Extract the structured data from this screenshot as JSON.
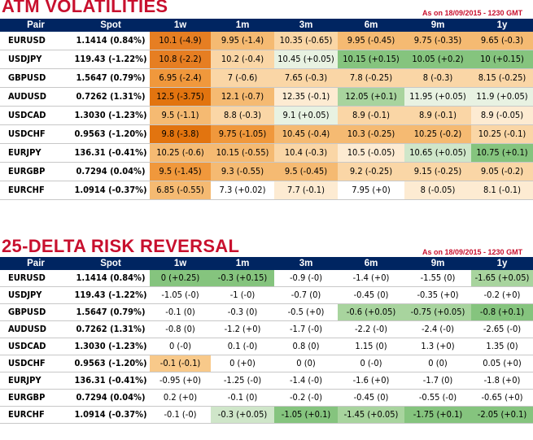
{
  "atm": {
    "title": "ATM VOLATILITIES",
    "as_of": "As on 18/09/2015 - 1230 GMT",
    "headers": [
      "Pair",
      "Spot",
      "1w",
      "1m",
      "3m",
      "6m",
      "9m",
      "1y"
    ],
    "rows": [
      {
        "pair": "EURUSD",
        "spot": "1.1414 (0.84%)",
        "cells": [
          {
            "text": "10.1 (-4.9)",
            "bg": "#e67e22"
          },
          {
            "text": "9.95 (-1.4)",
            "bg": "#f5ba72"
          },
          {
            "text": "10.35 (-0.65)",
            "bg": "#fad6a6"
          },
          {
            "text": "9.95 (-0.45)",
            "bg": "#f5ba72"
          },
          {
            "text": "9.75 (-0.35)",
            "bg": "#f5ba72"
          },
          {
            "text": "9.65 (-0.3)",
            "bg": "#f5ba72"
          }
        ]
      },
      {
        "pair": "USDJPY",
        "spot": "119.43 (-1.22%)",
        "cells": [
          {
            "text": "10.8 (-2.2)",
            "bg": "#e67e22"
          },
          {
            "text": "10.2 (-0.4)",
            "bg": "#fad6a6"
          },
          {
            "text": "10.45 (+0.05)",
            "bg": "#e8f2e2"
          },
          {
            "text": "10.15 (+0.15)",
            "bg": "#85c47e"
          },
          {
            "text": "10.05 (+0.2)",
            "bg": "#85c47e"
          },
          {
            "text": "10 (+0.15)",
            "bg": "#85c47e"
          }
        ]
      },
      {
        "pair": "GBPUSD",
        "spot": "1.5647 (0.79%)",
        "cells": [
          {
            "text": "6.95 (-2.4)",
            "bg": "#f0983c"
          },
          {
            "text": "7 (-0.6)",
            "bg": "#fad6a6"
          },
          {
            "text": "7.65 (-0.3)",
            "bg": "#fad6a6"
          },
          {
            "text": "7.8 (-0.25)",
            "bg": "#fad6a6"
          },
          {
            "text": "8 (-0.3)",
            "bg": "#fad6a6"
          },
          {
            "text": "8.15 (-0.25)",
            "bg": "#fad6a6"
          }
        ]
      },
      {
        "pair": "AUDUSD",
        "spot": "0.7262 (1.31%)",
        "cells": [
          {
            "text": "12.5 (-3.75)",
            "bg": "#e2740f"
          },
          {
            "text": "12.1 (-0.7)",
            "bg": "#f5ba72"
          },
          {
            "text": "12.35 (-0.1)",
            "bg": "#fdebd2"
          },
          {
            "text": "12.05 (+0.1)",
            "bg": "#a8d49e"
          },
          {
            "text": "11.95 (+0.05)",
            "bg": "#e8f2e2"
          },
          {
            "text": "11.9 (+0.05)",
            "bg": "#e8f2e2"
          }
        ]
      },
      {
        "pair": "USDCAD",
        "spot": "1.3030 (-1.23%)",
        "cells": [
          {
            "text": "9.5 (-1.1)",
            "bg": "#f5ba72"
          },
          {
            "text": "8.8 (-0.3)",
            "bg": "#fad6a6"
          },
          {
            "text": "9.1 (+0.05)",
            "bg": "#e8f2e2"
          },
          {
            "text": "8.9 (-0.1)",
            "bg": "#fad6a6"
          },
          {
            "text": "8.9 (-0.1)",
            "bg": "#fad6a6"
          },
          {
            "text": "8.9 (-0.05)",
            "bg": "#fdebd2"
          }
        ]
      },
      {
        "pair": "USDCHF",
        "spot": "0.9563 (-1.20%)",
        "cells": [
          {
            "text": "9.8 (-3.8)",
            "bg": "#e2740f"
          },
          {
            "text": "9.75 (-1.05)",
            "bg": "#f0983c"
          },
          {
            "text": "10.45 (-0.4)",
            "bg": "#f5ba72"
          },
          {
            "text": "10.3 (-0.25)",
            "bg": "#f5ba72"
          },
          {
            "text": "10.25 (-0.2)",
            "bg": "#f5ba72"
          },
          {
            "text": "10.25 (-0.1)",
            "bg": "#fad6a6"
          }
        ]
      },
      {
        "pair": "EURJPY",
        "spot": "136.31 (-0.41%)",
        "cells": [
          {
            "text": "10.25 (-0.6)",
            "bg": "#f5ba72"
          },
          {
            "text": "10.15 (-0.55)",
            "bg": "#f5ba72"
          },
          {
            "text": "10.4 (-0.3)",
            "bg": "#fad6a6"
          },
          {
            "text": "10.5 (-0.05)",
            "bg": "#fdebd2"
          },
          {
            "text": "10.65 (+0.05)",
            "bg": "#cfe6c9"
          },
          {
            "text": "10.75 (+0.1)",
            "bg": "#85c47e"
          }
        ]
      },
      {
        "pair": "EURGBP",
        "spot": "0.7294 (0.04%)",
        "cells": [
          {
            "text": "9.5 (-1.45)",
            "bg": "#f0983c"
          },
          {
            "text": "9.3 (-0.55)",
            "bg": "#f5ba72"
          },
          {
            "text": "9.5 (-0.45)",
            "bg": "#f5ba72"
          },
          {
            "text": "9.2 (-0.25)",
            "bg": "#fad6a6"
          },
          {
            "text": "9.15 (-0.25)",
            "bg": "#fad6a6"
          },
          {
            "text": "9.05 (-0.2)",
            "bg": "#fad6a6"
          }
        ]
      },
      {
        "pair": "EURCHF",
        "spot": "1.0914 (-0.37%)",
        "cells": [
          {
            "text": "6.85 (-0.55)",
            "bg": "#f5ba72"
          },
          {
            "text": "7.3 (+0.02)",
            "bg": "#ffffff"
          },
          {
            "text": "7.7 (-0.1)",
            "bg": "#fdebd2"
          },
          {
            "text": "7.95 (+0)",
            "bg": "#ffffff"
          },
          {
            "text": "8 (-0.05)",
            "bg": "#fdebd2"
          },
          {
            "text": "8.1 (-0.1)",
            "bg": "#fdebd2"
          }
        ]
      }
    ]
  },
  "rr": {
    "title": "25-DELTA RISK REVERSAL",
    "as_of": "As on 18/09/2015 - 1230 GMT",
    "headers": [
      "Pair",
      "Spot",
      "1w",
      "1m",
      "3m",
      "6m",
      "9m",
      "1y"
    ],
    "rows": [
      {
        "pair": "EURUSD",
        "spot": "1.1414 (0.84%)",
        "cells": [
          {
            "text": "0 (+0.25)",
            "bg": "#85c47e"
          },
          {
            "text": "-0.3 (+0.15)",
            "bg": "#85c47e"
          },
          {
            "text": "-0.9 (-0)",
            "bg": "#ffffff"
          },
          {
            "text": "-1.4 (+0)",
            "bg": "#ffffff"
          },
          {
            "text": "-1.55 (0)",
            "bg": "#ffffff"
          },
          {
            "text": "-1.65 (+0.05)",
            "bg": "#a8d49e"
          }
        ]
      },
      {
        "pair": "USDJPY",
        "spot": "119.43 (-1.22%)",
        "cells": [
          {
            "text": "-1.05 (-0)",
            "bg": "#ffffff"
          },
          {
            "text": "-1 (-0)",
            "bg": "#ffffff"
          },
          {
            "text": "-0.7 (0)",
            "bg": "#ffffff"
          },
          {
            "text": "-0.45 (0)",
            "bg": "#ffffff"
          },
          {
            "text": "-0.35 (+0)",
            "bg": "#ffffff"
          },
          {
            "text": "-0.2 (+0)",
            "bg": "#ffffff"
          }
        ]
      },
      {
        "pair": "GBPUSD",
        "spot": "1.5647 (0.79%)",
        "cells": [
          {
            "text": "-0.1 (0)",
            "bg": "#ffffff"
          },
          {
            "text": "-0.3 (0)",
            "bg": "#ffffff"
          },
          {
            "text": "-0.5 (+0)",
            "bg": "#ffffff"
          },
          {
            "text": "-0.6 (+0.05)",
            "bg": "#a8d49e"
          },
          {
            "text": "-0.75 (+0.05)",
            "bg": "#a8d49e"
          },
          {
            "text": "-0.8 (+0.1)",
            "bg": "#85c47e"
          }
        ]
      },
      {
        "pair": "AUDUSD",
        "spot": "0.7262 (1.31%)",
        "cells": [
          {
            "text": "-0.8 (0)",
            "bg": "#ffffff"
          },
          {
            "text": "-1.2 (+0)",
            "bg": "#ffffff"
          },
          {
            "text": "-1.7 (-0)",
            "bg": "#ffffff"
          },
          {
            "text": "-2.2 (-0)",
            "bg": "#ffffff"
          },
          {
            "text": "-2.4 (-0)",
            "bg": "#ffffff"
          },
          {
            "text": "-2.65 (-0)",
            "bg": "#ffffff"
          }
        ]
      },
      {
        "pair": "USDCAD",
        "spot": "1.3030 (-1.23%)",
        "cells": [
          {
            "text": "0 (-0)",
            "bg": "#ffffff"
          },
          {
            "text": "0.1 (-0)",
            "bg": "#ffffff"
          },
          {
            "text": "0.8 (0)",
            "bg": "#ffffff"
          },
          {
            "text": "1.15 (0)",
            "bg": "#ffffff"
          },
          {
            "text": "1.3 (+0)",
            "bg": "#ffffff"
          },
          {
            "text": "1.35 (0)",
            "bg": "#ffffff"
          }
        ]
      },
      {
        "pair": "USDCHF",
        "spot": "0.9563 (-1.20%)",
        "cells": [
          {
            "text": "-0.1 (-0.1)",
            "bg": "#f8c98a"
          },
          {
            "text": "0 (+0)",
            "bg": "#ffffff"
          },
          {
            "text": "0 (0)",
            "bg": "#ffffff"
          },
          {
            "text": "0 (-0)",
            "bg": "#ffffff"
          },
          {
            "text": "0 (0)",
            "bg": "#ffffff"
          },
          {
            "text": "0.05 (+0)",
            "bg": "#ffffff"
          }
        ]
      },
      {
        "pair": "EURJPY",
        "spot": "136.31 (-0.41%)",
        "cells": [
          {
            "text": "-0.95 (+0)",
            "bg": "#ffffff"
          },
          {
            "text": "-1.25 (-0)",
            "bg": "#ffffff"
          },
          {
            "text": "-1.4 (-0)",
            "bg": "#ffffff"
          },
          {
            "text": "-1.6 (+0)",
            "bg": "#ffffff"
          },
          {
            "text": "-1.7 (0)",
            "bg": "#ffffff"
          },
          {
            "text": "-1.8 (+0)",
            "bg": "#ffffff"
          }
        ]
      },
      {
        "pair": "EURGBP",
        "spot": "0.7294 (0.04%)",
        "cells": [
          {
            "text": "0.2 (+0)",
            "bg": "#ffffff"
          },
          {
            "text": "-0.1 (0)",
            "bg": "#ffffff"
          },
          {
            "text": "-0.2 (-0)",
            "bg": "#ffffff"
          },
          {
            "text": "-0.45 (0)",
            "bg": "#ffffff"
          },
          {
            "text": "-0.55 (-0)",
            "bg": "#ffffff"
          },
          {
            "text": "-0.65 (+0)",
            "bg": "#ffffff"
          }
        ]
      },
      {
        "pair": "EURCHF",
        "spot": "1.0914 (-0.37%)",
        "cells": [
          {
            "text": "-0.1 (-0)",
            "bg": "#ffffff"
          },
          {
            "text": "-0.3 (+0.05)",
            "bg": "#cfe6c9"
          },
          {
            "text": "-1.05 (+0.1)",
            "bg": "#85c47e"
          },
          {
            "text": "-1.45 (+0.05)",
            "bg": "#a8d49e"
          },
          {
            "text": "-1.75 (+0.1)",
            "bg": "#85c47e"
          },
          {
            "text": "-2.05 (+0.1)",
            "bg": "#85c47e"
          }
        ]
      }
    ]
  }
}
